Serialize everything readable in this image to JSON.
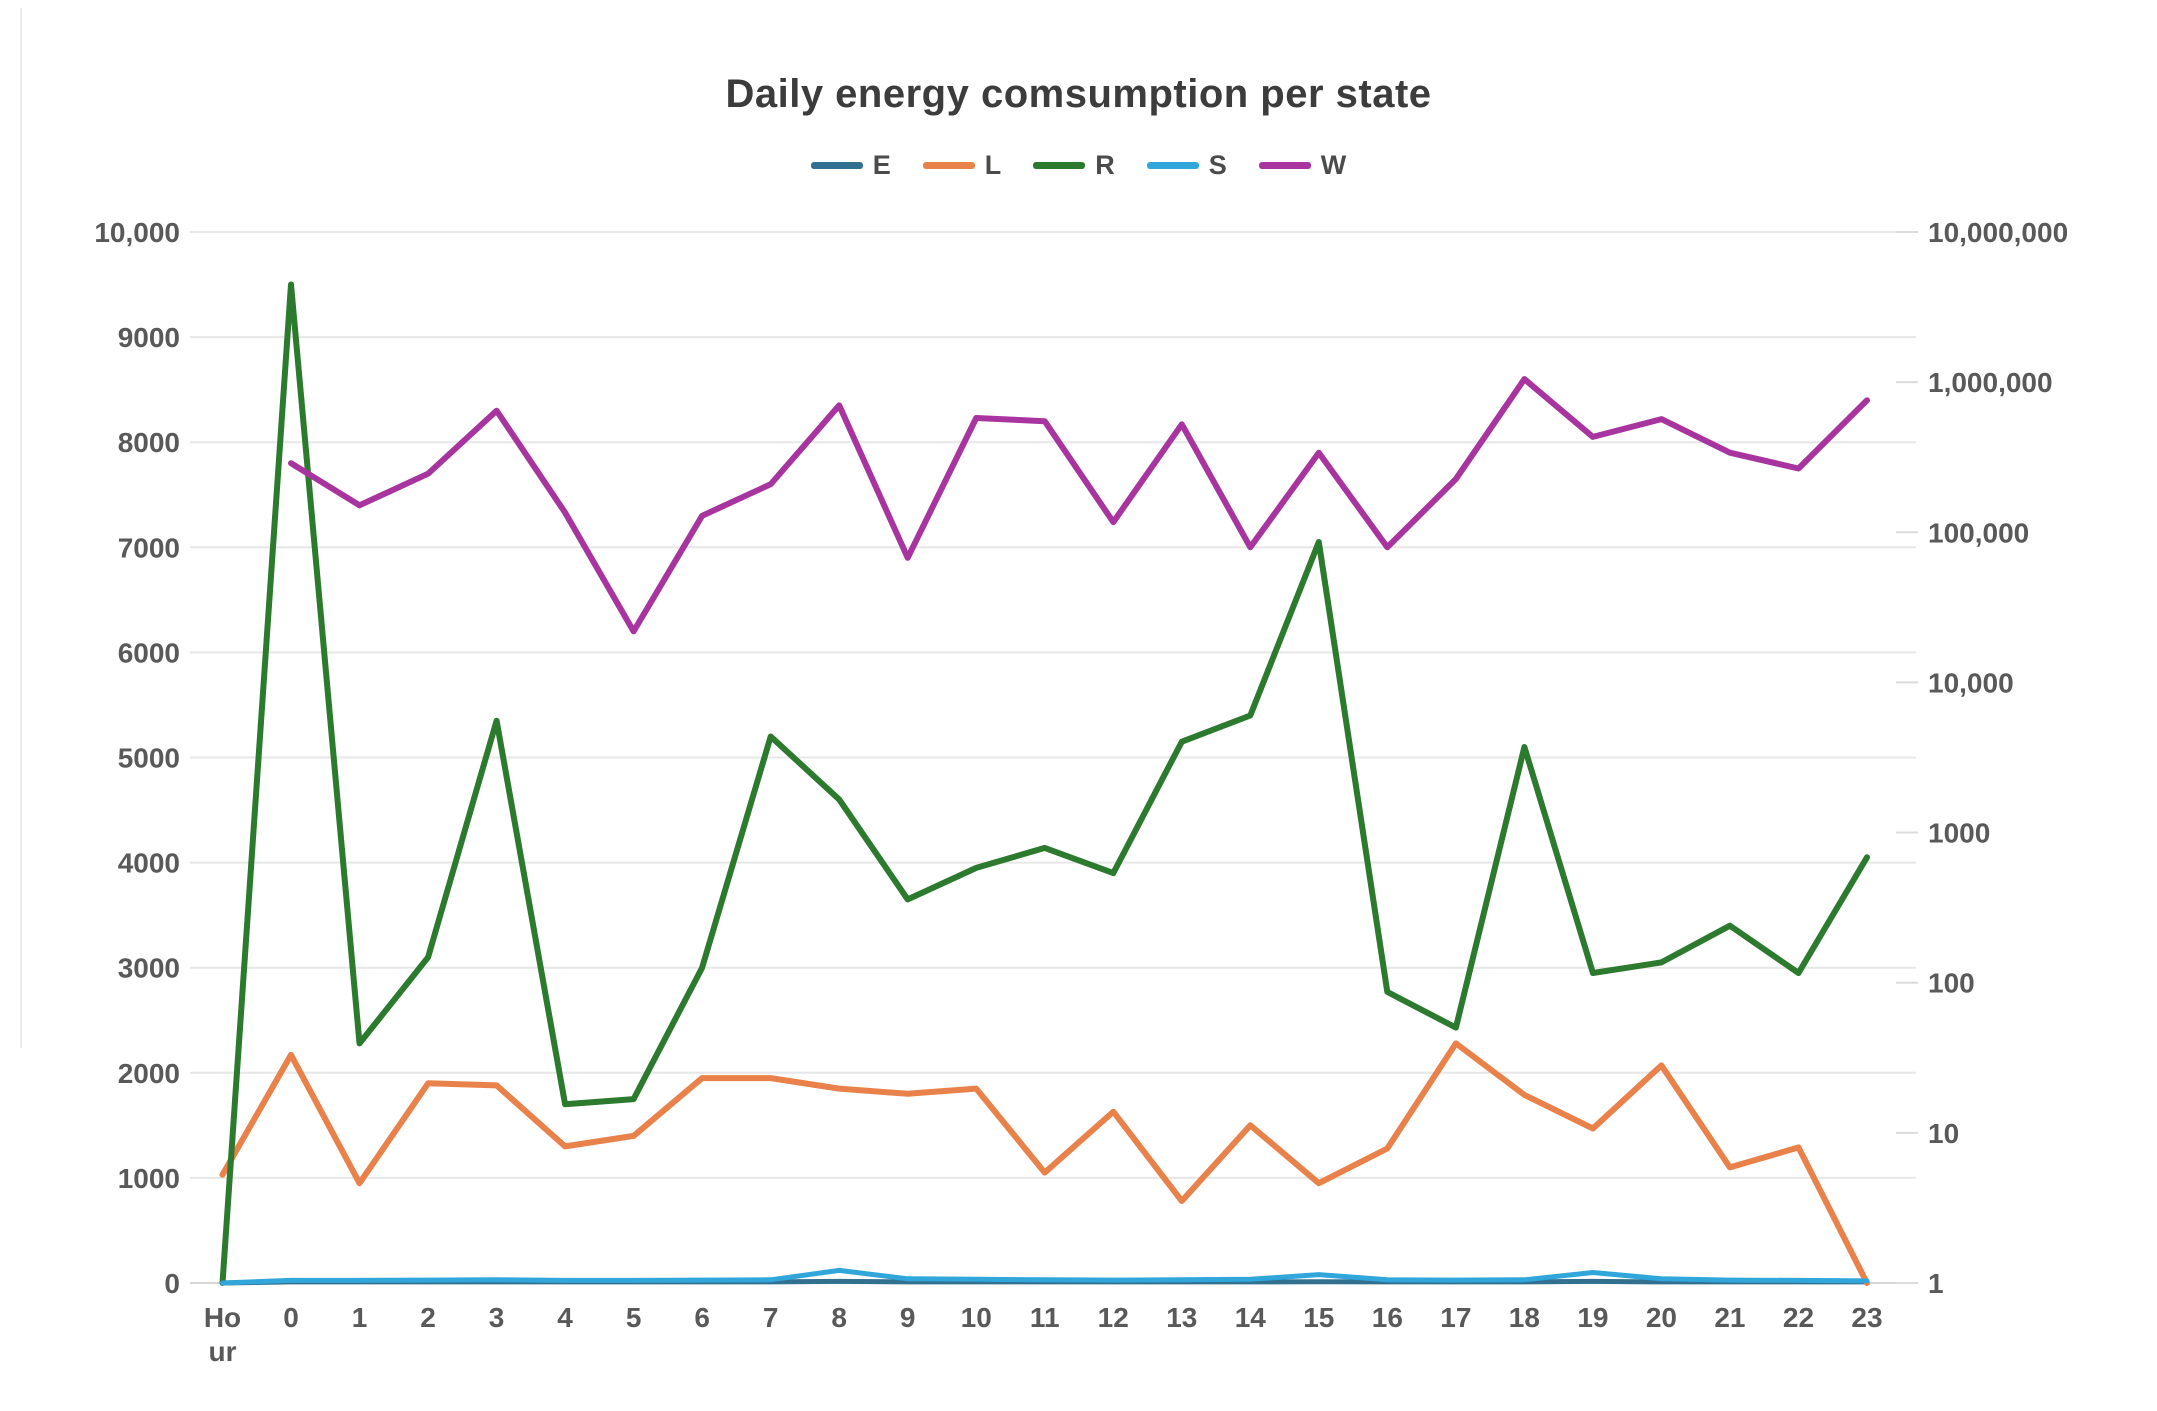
{
  "page": {
    "background": "#ffffff"
  },
  "chart_data": {
    "type": "line",
    "title": "Daily energy comsumption per state",
    "categories": [
      "Hour",
      "0",
      "1",
      "2",
      "3",
      "4",
      "5",
      "6",
      "7",
      "8",
      "9",
      "10",
      "11",
      "12",
      "13",
      "14",
      "15",
      "16",
      "17",
      "18",
      "19",
      "20",
      "21",
      "22",
      "23"
    ],
    "series": [
      {
        "name": "E",
        "color": "#31708f",
        "axis": "left",
        "values": [
          0,
          10,
          10,
          10,
          10,
          10,
          10,
          10,
          10,
          15,
          10,
          10,
          10,
          10,
          10,
          10,
          12,
          10,
          10,
          10,
          15,
          10,
          10,
          10,
          10
        ]
      },
      {
        "name": "L",
        "color": "#e9824a",
        "axis": "left",
        "values": [
          1030,
          2170,
          950,
          1900,
          1880,
          1300,
          1400,
          1950,
          1950,
          1850,
          1800,
          1850,
          1050,
          1630,
          780,
          1500,
          950,
          1280,
          2280,
          1790,
          1470,
          2070,
          1100,
          1290,
          0
        ]
      },
      {
        "name": "R",
        "color": "#2c7a2e",
        "axis": "left",
        "values": [
          0,
          9500,
          2280,
          3100,
          5350,
          1700,
          1750,
          3000,
          5200,
          4600,
          3650,
          3950,
          4140,
          3900,
          5150,
          5400,
          7050,
          2770,
          2430,
          5100,
          2950,
          3050,
          3400,
          2950,
          4050
        ]
      },
      {
        "name": "S",
        "color": "#30a6da",
        "axis": "left",
        "values": [
          0,
          25,
          25,
          28,
          30,
          25,
          25,
          28,
          30,
          120,
          40,
          35,
          30,
          28,
          30,
          35,
          80,
          30,
          28,
          30,
          100,
          40,
          28,
          25,
          20
        ]
      },
      {
        "name": "W",
        "color": "#a8359f",
        "axis": "left",
        "values": [
          null,
          7800,
          7400,
          7700,
          8300,
          7330,
          6200,
          7300,
          7600,
          8350,
          6900,
          8230,
          8200,
          7240,
          8170,
          7000,
          7900,
          7000,
          7650,
          8600,
          8050,
          8220,
          7900,
          7750,
          8400
        ]
      }
    ],
    "y_axis_left": {
      "min": 0,
      "max": 10000,
      "grid": true,
      "tick_labels": [
        "10,000",
        "9000",
        "8000",
        "7000",
        "6000",
        "5000",
        "4000",
        "3000",
        "2000",
        "1000",
        "0"
      ]
    },
    "y_axis_right": {
      "scale": "log",
      "min": 1,
      "max": 10000000,
      "tick_labels": [
        "10,000,000",
        "1,000,000",
        "100,000",
        "10,000",
        "1000",
        "100",
        "10",
        "1"
      ]
    },
    "x_axis": {
      "first_label": "Hour",
      "first_label_wrapped": [
        "Ho",
        "ur"
      ]
    },
    "legend": {
      "position": "top",
      "entries": [
        "E",
        "L",
        "R",
        "S",
        "W"
      ]
    }
  }
}
